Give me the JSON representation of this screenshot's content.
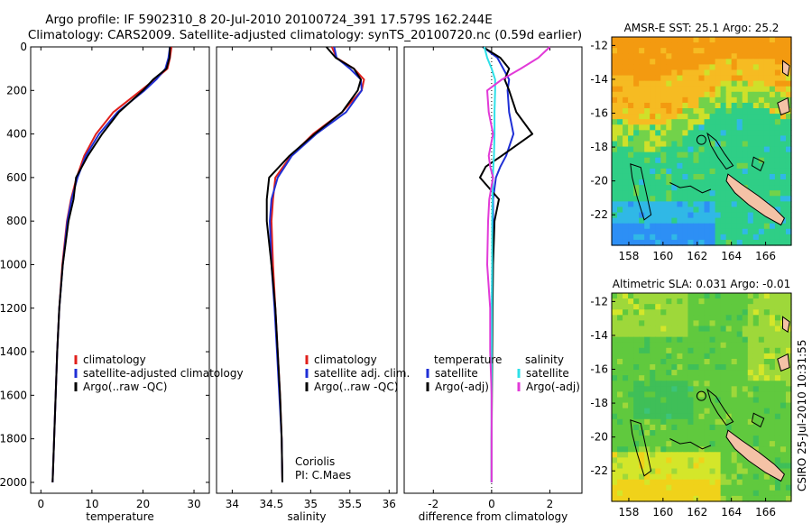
{
  "header": {
    "line1": "Argo profile: IF 5902310_8 20-Jul-2010 20100724_391 17.579S 162.244E",
    "line2": "Climatology: CARS2009. Satellite-adjusted climatology: synTS_20100720.nc (0.59d earlier)"
  },
  "colors": {
    "climatology": "#e0201c",
    "satellite": "#1f2fd6",
    "argo": "#000000",
    "salinity_satellite": "#2ee0e8",
    "salinity_argo": "#e23ad8",
    "land": "#f4c2a6"
  },
  "chart_data": [
    {
      "type": "line",
      "id": "temperature",
      "xlabel": "temperature",
      "ylabel": "",
      "xlim": [
        -2,
        33
      ],
      "ylim": [
        2050,
        0
      ],
      "xticks": [
        0,
        10,
        20,
        30
      ],
      "yticks": [
        0,
        200,
        400,
        600,
        800,
        1000,
        1200,
        1400,
        1600,
        1800,
        2000
      ],
      "depth": [
        0,
        50,
        100,
        150,
        200,
        300,
        400,
        500,
        600,
        700,
        800,
        1000,
        1200,
        1400,
        1600,
        1800,
        2000
      ],
      "series": [
        {
          "name": "climatology",
          "color": "#e0201c",
          "values": [
            25.6,
            25.3,
            24.8,
            22.3,
            19.6,
            14.2,
            10.8,
            8.5,
            7.0,
            5.9,
            5.1,
            4.2,
            3.6,
            3.2,
            2.9,
            2.6,
            2.3
          ]
        },
        {
          "name": "satellite-adjusted climatology",
          "color": "#1f2fd6",
          "values": [
            25.3,
            25.0,
            24.4,
            22.6,
            20.3,
            15.0,
            11.4,
            8.8,
            7.2,
            6.0,
            5.2,
            4.3,
            3.6,
            3.2,
            2.9,
            2.6,
            2.3
          ]
        },
        {
          "name": "Argo(..raw -QC)",
          "color": "#000000",
          "values": [
            25.3,
            25.2,
            24.6,
            22.0,
            20.0,
            15.3,
            12.0,
            9.2,
            6.9,
            6.4,
            5.4,
            4.3,
            3.6,
            3.2,
            2.9,
            2.6,
            2.3
          ]
        }
      ],
      "legend": [
        "climatology",
        "satellite-adjusted climatology",
        "Argo(..raw -QC)"
      ]
    },
    {
      "type": "line",
      "id": "salinity",
      "xlabel": "salinity",
      "xlim": [
        33.8,
        36.1
      ],
      "ylim": [
        2050,
        0
      ],
      "xticks": [
        34,
        34.5,
        35,
        35.5,
        36
      ],
      "xticklabels": [
        "34",
        "34.5",
        "35",
        "35.5",
        "36"
      ],
      "depth": [
        0,
        50,
        100,
        150,
        200,
        300,
        400,
        500,
        600,
        700,
        800,
        1000,
        1200,
        1400,
        1600,
        1800,
        2000
      ],
      "series": [
        {
          "name": "climatology",
          "color": "#e0201c",
          "values": [
            35.27,
            35.33,
            35.55,
            35.68,
            35.65,
            35.4,
            35.03,
            34.75,
            34.55,
            34.52,
            34.5,
            34.52,
            34.55,
            34.58,
            34.61,
            34.63,
            34.64
          ]
        },
        {
          "name": "satellite adj. clim.",
          "color": "#1f2fd6",
          "values": [
            35.3,
            35.33,
            35.5,
            35.64,
            35.65,
            35.45,
            35.07,
            34.76,
            34.58,
            34.5,
            34.48,
            34.5,
            34.54,
            34.57,
            34.6,
            34.63,
            34.64
          ]
        },
        {
          "name": "Argo(..raw -QC)",
          "color": "#000000",
          "values": [
            35.2,
            35.32,
            35.55,
            35.64,
            35.6,
            35.4,
            35.05,
            34.73,
            34.47,
            34.44,
            34.44,
            34.5,
            34.55,
            34.58,
            34.61,
            34.63,
            34.64
          ]
        }
      ],
      "legend": [
        "climatology",
        "satellite adj. clim.",
        "Argo(..raw -QC)"
      ],
      "annotation": [
        "Coriolis",
        "PI: C.Maes"
      ]
    },
    {
      "type": "line",
      "id": "difference",
      "xlabel": "difference from climatology",
      "xlim": [
        -3,
        3.1
      ],
      "ylim": [
        2050,
        0
      ],
      "xticks": [
        -2,
        0,
        2
      ],
      "depth": [
        0,
        50,
        100,
        150,
        200,
        300,
        400,
        500,
        550,
        600,
        700,
        800,
        1000,
        1200,
        1400,
        1600,
        1800,
        2000
      ],
      "series": [
        {
          "name": "temperature satellite",
          "color": "#1f2fd6",
          "values": [
            -0.3,
            0.2,
            0.4,
            0.6,
            0.55,
            0.6,
            0.75,
            0.5,
            0.3,
            0.15,
            0.05,
            0.05,
            0.02,
            0.01,
            0.0,
            0.0,
            0.0,
            0.0
          ]
        },
        {
          "name": "temperature Argo(-adj)",
          "color": "#000000",
          "values": [
            -0.3,
            0.3,
            0.6,
            0.45,
            0.6,
            0.85,
            1.4,
            0.35,
            -0.2,
            -0.4,
            0.25,
            0.1,
            0.05,
            0.03,
            0.02,
            0.01,
            0.0,
            0.0
          ]
        },
        {
          "name": "salinity satellite",
          "color": "#2ee0e8",
          "values": [
            -0.25,
            -0.15,
            0.0,
            0.12,
            0.12,
            0.1,
            0.1,
            0.08,
            0.06,
            0.04,
            0.03,
            0.02,
            0.02,
            0.01,
            0.0,
            0.0,
            0.0,
            0.0
          ]
        },
        {
          "name": "salinity Argo(-adj)",
          "color": "#e23ad8",
          "values": [
            2.0,
            1.6,
            1.0,
            0.35,
            -0.15,
            -0.1,
            0.05,
            -0.1,
            -0.05,
            0.05,
            -0.08,
            -0.12,
            -0.15,
            -0.05,
            -0.05,
            0.0,
            0.0,
            0.0
          ]
        }
      ],
      "legend_titles": [
        "temperature",
        "salinity"
      ],
      "legend": [
        "satellite",
        "Argo(-adj)",
        "satellite",
        "Argo(-adj)"
      ]
    },
    {
      "type": "heatmap",
      "id": "sst",
      "title": "AMSR-E SST: 25.1  Argo: 25.2",
      "xlim": [
        157,
        167.5
      ],
      "ylim": [
        -23.8,
        -11.5
      ],
      "xticks": [
        158,
        160,
        162,
        164,
        166
      ],
      "yticks": [
        -12,
        -14,
        -16,
        -18,
        -20,
        -22
      ],
      "profile_location": {
        "lon": 162.244,
        "lat": -17.579
      },
      "colors": [
        "#f39a10",
        "#f6bb22",
        "#cfe02a",
        "#72d24a",
        "#2fce86",
        "#30b8e6",
        "#2d8ff5"
      ]
    },
    {
      "type": "heatmap",
      "id": "sla",
      "title": "Altimetric SLA: 0.031  Argo: -0.01",
      "xlim": [
        157,
        167.5
      ],
      "ylim": [
        -23.8,
        -11.5
      ],
      "xticks": [
        158,
        160,
        162,
        164,
        166
      ],
      "yticks": [
        -12,
        -14,
        -16,
        -18,
        -20,
        -22
      ],
      "profile_location": {
        "lon": 162.244,
        "lat": -17.579
      },
      "colors": [
        "#f0d21a",
        "#d4e62a",
        "#9ed83a",
        "#60c93e",
        "#3fbf58",
        "#3bc47a"
      ]
    }
  ],
  "footer": {
    "credit": "CSIRO 25-Jul-2010 10:31:55"
  }
}
